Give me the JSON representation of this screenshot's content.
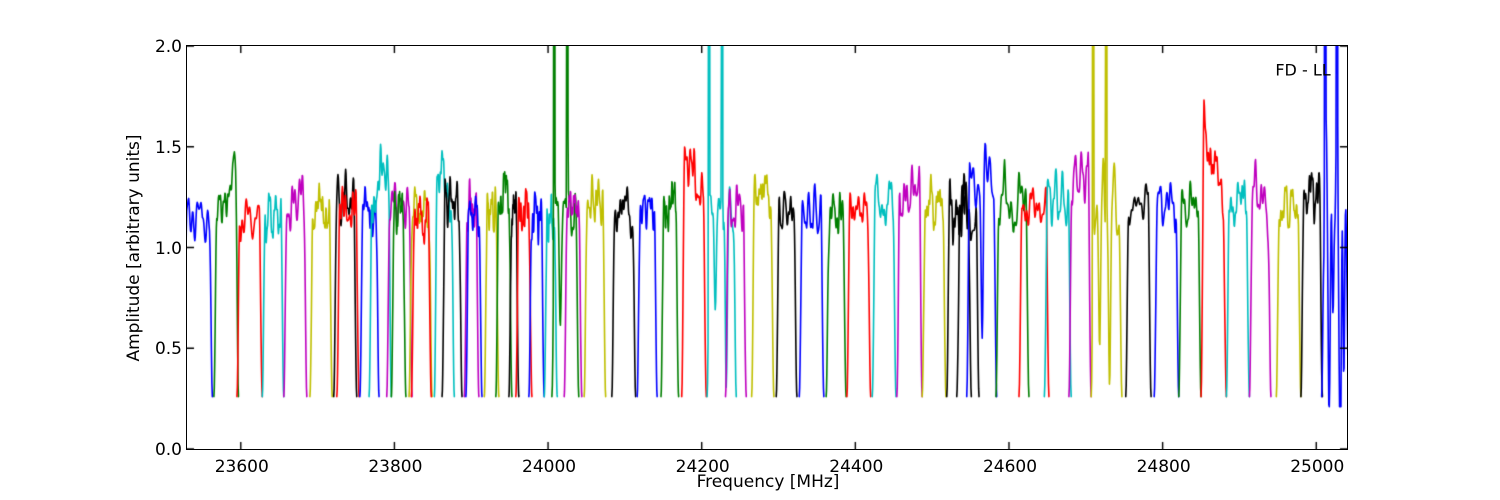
{
  "figure": {
    "background": "#ffffff",
    "frame_color": "#000000"
  },
  "chart_data": {
    "type": "line",
    "title": "",
    "xlabel": "Frequency [MHz]",
    "ylabel": "Amplitude [arbitrary units]",
    "annotation": "FD - LL",
    "xlim": [
      23530,
      25040
    ],
    "ylim": [
      0.0,
      2.0
    ],
    "grid": false,
    "legend_position": "none",
    "xticks": [
      {
        "v": 23600,
        "label": "23600"
      },
      {
        "v": 23800,
        "label": "23800"
      },
      {
        "v": 24000,
        "label": "24000"
      },
      {
        "v": 24200,
        "label": "24200"
      },
      {
        "v": 24400,
        "label": "24400"
      },
      {
        "v": 24600,
        "label": "24600"
      },
      {
        "v": 24800,
        "label": "24800"
      },
      {
        "v": 25000,
        "label": "25000"
      }
    ],
    "yticks": [
      {
        "v": 0.0,
        "label": "0.0"
      },
      {
        "v": 0.5,
        "label": "0.5"
      },
      {
        "v": 1.0,
        "label": "1.0"
      },
      {
        "v": 1.5,
        "label": "1.5"
      },
      {
        "v": 2.0,
        "label": "2.0"
      }
    ],
    "colors": {
      "b": "#0000ff",
      "g": "#007f00",
      "r": "#ff0000",
      "c": "#00bfbf",
      "m": "#bf00bf",
      "y": "#bfbf00",
      "k": "#000000"
    },
    "baseline_amplitude": 0.26,
    "plateau_amplitude_typical": 1.15,
    "description": "Bandpass amplitude spectra of consecutive sub-bands, colors cycling blue/green/red/cyan/magenta/yellow/black; narrow RFI spikes clipped at 2.0",
    "segments": [
      {
        "f0": 23526,
        "f1": 23563,
        "color": "b",
        "peak": 1.25
      },
      {
        "f0": 23565,
        "f1": 23597,
        "color": "g",
        "peak": 1.37,
        "tilt": 0.28
      },
      {
        "f0": 23595,
        "f1": 23628,
        "color": "r",
        "peak": 1.23
      },
      {
        "f0": 23628,
        "f1": 23656,
        "color": "c",
        "peak": 1.25
      },
      {
        "f0": 23656,
        "f1": 23686,
        "color": "m",
        "peak": 1.32,
        "tilt": 0.12
      },
      {
        "f0": 23690,
        "f1": 23719,
        "color": "y",
        "peak": 1.27
      },
      {
        "f0": 23721,
        "f1": 23751,
        "color": "k",
        "peak": 1.33
      },
      {
        "f0": 23725,
        "f1": 23754,
        "color": "r",
        "peak": 1.27
      },
      {
        "f0": 23755,
        "f1": 23780,
        "color": "b",
        "peak": 1.27
      },
      {
        "f0": 23767,
        "f1": 23796,
        "color": "c",
        "peak": 1.43,
        "tilt": 0.2
      },
      {
        "f0": 23790,
        "f1": 23823,
        "color": "m",
        "peak": 1.31
      },
      {
        "f0": 23796,
        "f1": 23815,
        "color": "g",
        "peak": 1.29
      },
      {
        "f0": 23819,
        "f1": 23849,
        "color": "y",
        "peak": 1.25
      },
      {
        "f0": 23822,
        "f1": 23848,
        "color": "r",
        "peak": 1.23
      },
      {
        "f0": 23852,
        "f1": 23878,
        "color": "c",
        "peak": 1.43,
        "tilt": -0.2
      },
      {
        "f0": 23862,
        "f1": 23888,
        "color": "k",
        "peak": 1.33
      },
      {
        "f0": 23891,
        "f1": 23910,
        "color": "m",
        "peak": 1.3
      },
      {
        "f0": 23893,
        "f1": 23914,
        "color": "b",
        "peak": 1.27
      },
      {
        "f0": 23917,
        "f1": 23936,
        "color": "y",
        "peak": 1.27
      },
      {
        "f0": 23932,
        "f1": 23953,
        "color": "g",
        "peak": 1.37
      },
      {
        "f0": 23949,
        "f1": 23962,
        "color": "k",
        "peak": 1.29
      },
      {
        "f0": 23958,
        "f1": 23979,
        "color": "r",
        "peak": 1.27
      },
      {
        "f0": 23975,
        "f1": 23995,
        "color": "b",
        "peak": 1.27
      },
      {
        "f0": 23995,
        "f1": 24012,
        "color": "c",
        "peak": 1.21
      },
      {
        "f0": 24005,
        "f1": 24040,
        "color": "g",
        "peak": 1.27,
        "spikes": [
          24008,
          24025
        ],
        "dips": [
          [
            24016,
            0.45
          ]
        ]
      },
      {
        "f0": 24021,
        "f1": 24044,
        "color": "m",
        "peak": 1.29
      },
      {
        "f0": 24047,
        "f1": 24075,
        "color": "y",
        "peak": 1.31
      },
      {
        "f0": 24083,
        "f1": 24114,
        "color": "k",
        "peak": 1.29
      },
      {
        "f0": 24116,
        "f1": 24142,
        "color": "b",
        "peak": 1.29
      },
      {
        "f0": 24147,
        "f1": 24170,
        "color": "g",
        "peak": 1.31
      },
      {
        "f0": 24174,
        "f1": 24206,
        "color": "r",
        "peak": 1.46,
        "tilt": -0.25
      },
      {
        "f0": 24207,
        "f1": 24245,
        "color": "c",
        "peak": 1.31,
        "spikes": [
          24209.5,
          24226.5
        ],
        "dips": [
          [
            24218,
            0.6
          ],
          [
            24232,
            1.0
          ]
        ]
      },
      {
        "f0": 24231,
        "f1": 24258,
        "color": "m",
        "peak": 1.29
      },
      {
        "f0": 24265,
        "f1": 24294,
        "color": "y",
        "peak": 1.37,
        "tilt": -0.1
      },
      {
        "f0": 24297,
        "f1": 24324,
        "color": "k",
        "peak": 1.26
      },
      {
        "f0": 24327,
        "f1": 24359,
        "color": "b",
        "peak": 1.26
      },
      {
        "f0": 24362,
        "f1": 24388,
        "color": "g",
        "peak": 1.26
      },
      {
        "f0": 24389,
        "f1": 24420,
        "color": "r",
        "peak": 1.28
      },
      {
        "f0": 24422,
        "f1": 24453,
        "color": "c",
        "peak": 1.31
      },
      {
        "f0": 24454,
        "f1": 24487,
        "color": "m",
        "peak": 1.37,
        "tilt": 0.1
      },
      {
        "f0": 24487,
        "f1": 24518,
        "color": "y",
        "peak": 1.31
      },
      {
        "f0": 24519,
        "f1": 24551,
        "color": "k",
        "peak": 1.28,
        "noise": 1.4
      },
      {
        "f0": 24532,
        "f1": 24561,
        "color": "k",
        "peak": 1.23,
        "noise": 1.4
      },
      {
        "f0": 24545,
        "f1": 24584,
        "color": "b",
        "peak": 1.46,
        "dips": [
          [
            24565,
            0.8
          ]
        ]
      },
      {
        "f0": 24583,
        "f1": 24626,
        "color": "g",
        "peak": 1.31,
        "noise": 1.4
      },
      {
        "f0": 24613,
        "f1": 24652,
        "color": "r",
        "peak": 1.29
      },
      {
        "f0": 24646,
        "f1": 24681,
        "color": "c",
        "peak": 1.33
      },
      {
        "f0": 24678,
        "f1": 24707,
        "color": "m",
        "peak": 1.46
      },
      {
        "f0": 24707,
        "f1": 24747,
        "color": "y",
        "peak": 1.33,
        "noise": 1.6,
        "spikes": [
          24709.5,
          24726.5
        ],
        "dips": [
          [
            24718,
            0.75
          ],
          [
            24731,
            0.95
          ]
        ]
      },
      {
        "f0": 24752,
        "f1": 24785,
        "color": "k",
        "peak": 1.31
      },
      {
        "f0": 24789,
        "f1": 24821,
        "color": "b",
        "peak": 1.31
      },
      {
        "f0": 24821,
        "f1": 24850,
        "color": "g",
        "peak": 1.31
      },
      {
        "f0": 24850,
        "f1": 24883,
        "color": "r",
        "peak": 1.51,
        "tilt": -0.35
      },
      {
        "f0": 24883,
        "f1": 24913,
        "color": "c",
        "peak": 1.31
      },
      {
        "f0": 24913,
        "f1": 24941,
        "color": "m",
        "peak": 1.34,
        "tilt": -0.1
      },
      {
        "f0": 24948,
        "f1": 24980,
        "color": "y",
        "peak": 1.29
      },
      {
        "f0": 24980,
        "f1": 25008,
        "color": "k",
        "peak": 1.37
      },
      {
        "f0": 25007,
        "f1": 25042,
        "color": "b",
        "peak": 1.4,
        "noise": 3,
        "spikes": [
          25011.5,
          25027
        ],
        "dips": [
          [
            25016,
            0.9
          ],
          [
            25022,
            0.7
          ],
          [
            25031,
            1.15
          ],
          [
            25036,
            1.0
          ]
        ]
      }
    ]
  }
}
